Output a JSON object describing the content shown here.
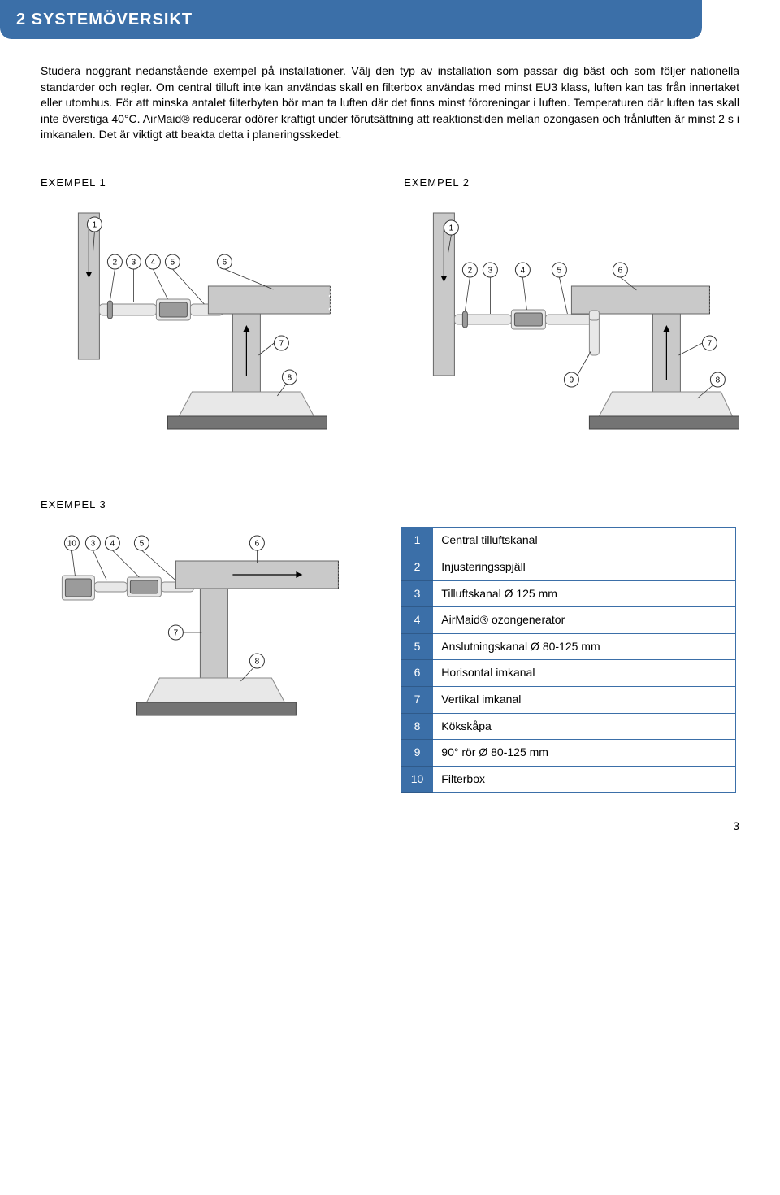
{
  "header": {
    "title": "2 SYSTEMÖVERSIKT"
  },
  "intro": {
    "text": "Studera noggrant nedanstående exempel på installationer. Välj den typ av installation som passar dig bäst och som följer nationella standarder och regler. Om central tilluft inte kan användas skall en filterbox användas med minst EU3 klass, luften kan tas från innertaket eller utomhus. För att minska antalet filterbyten bör man ta luften där det finns minst föroreningar i luften. Temperaturen där luften tas skall inte överstiga 40°C. AirMaid® reducerar odörer kraftigt under förutsättning att reaktionstiden mellan ozongasen och frånluften är minst 2 s i imkanalen. Det är viktigt att beakta detta i planeringsskedet."
  },
  "examples": {
    "ex1": {
      "label": "EXEMPEL 1",
      "callouts": [
        "1",
        "2",
        "3",
        "4",
        "5",
        "6",
        "7",
        "8"
      ]
    },
    "ex2": {
      "label": "EXEMPEL 2",
      "callouts": [
        "1",
        "2",
        "3",
        "4",
        "5",
        "6",
        "7",
        "8",
        "9"
      ]
    },
    "ex3": {
      "label": "EXEMPEL 3",
      "callouts": [
        "10",
        "3",
        "4",
        "5",
        "6",
        "7",
        "8"
      ]
    }
  },
  "legend": {
    "rows": [
      {
        "n": "1",
        "t": "Central tilluftskanal"
      },
      {
        "n": "2",
        "t": "Injusteringsspjäll"
      },
      {
        "n": "3",
        "t": "Tilluftskanal Ø 125 mm"
      },
      {
        "n": "4",
        "t": "AirMaid® ozongenerator"
      },
      {
        "n": "5",
        "t": "Anslutningskanal Ø 80-125 mm"
      },
      {
        "n": "6",
        "t": "Horisontal imkanal"
      },
      {
        "n": "7",
        "t": "Vertikal imkanal"
      },
      {
        "n": "8",
        "t": "Kökskåpa"
      },
      {
        "n": "9",
        "t": "90°  rör Ø 80-125 mm"
      },
      {
        "n": "10",
        "t": "Filterbox"
      }
    ]
  },
  "page": {
    "number": "3"
  },
  "style": {
    "brand_blue": "#3b6fa8",
    "duct_light": "#e8e8e8",
    "duct_mid": "#c9c9c9",
    "duct_dark": "#9b9b9b",
    "slab": "#747474"
  }
}
